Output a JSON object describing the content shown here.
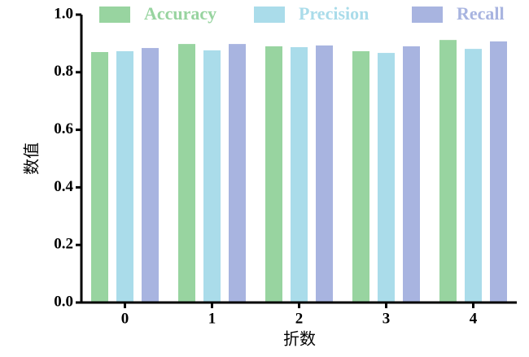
{
  "chart_data": {
    "type": "bar",
    "x_label": "折数",
    "y_label": "数值",
    "categories": [
      "0",
      "1",
      "2",
      "3",
      "4"
    ],
    "series": [
      {
        "name": "Accuracy",
        "color": "#98d4a0",
        "values": [
          0.87,
          0.898,
          0.89,
          0.873,
          0.912
        ]
      },
      {
        "name": "Precision",
        "color": "#aadcea",
        "values": [
          0.873,
          0.876,
          0.887,
          0.867,
          0.881
        ]
      },
      {
        "name": "Recall",
        "color": "#a8b4e0",
        "values": [
          0.884,
          0.898,
          0.893,
          0.89,
          0.907
        ]
      }
    ],
    "ylim": [
      0,
      1.0
    ],
    "yticks": [
      {
        "value": 0,
        "label": "0.0"
      },
      0.2,
      0.4,
      0.6,
      0.8,
      {
        "value": 1.0,
        "label": "1.0"
      }
    ],
    "legend": "top-right",
    "grid": false
  }
}
